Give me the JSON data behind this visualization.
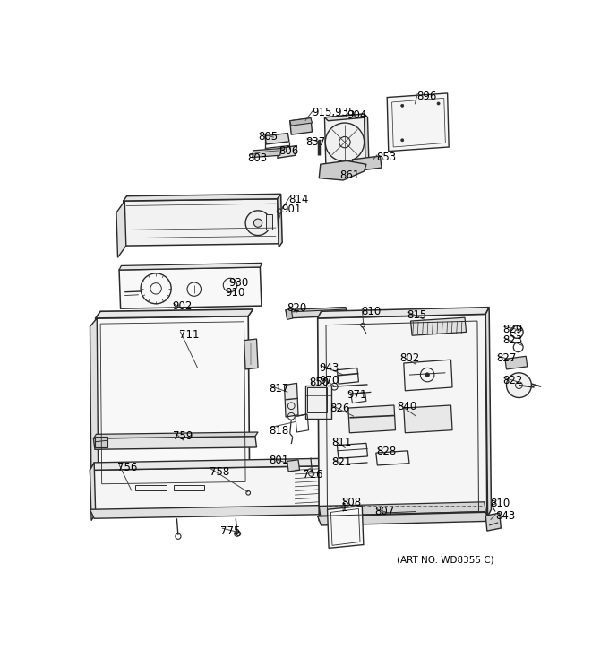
{
  "fig_width": 6.8,
  "fig_height": 7.25,
  "dpi": 100,
  "bg": "#ffffff",
  "lc": "#2a2a2a",
  "tc": "#000000",
  "fs": 8.5,
  "art_no": "(ART NO. WD8355 C)"
}
